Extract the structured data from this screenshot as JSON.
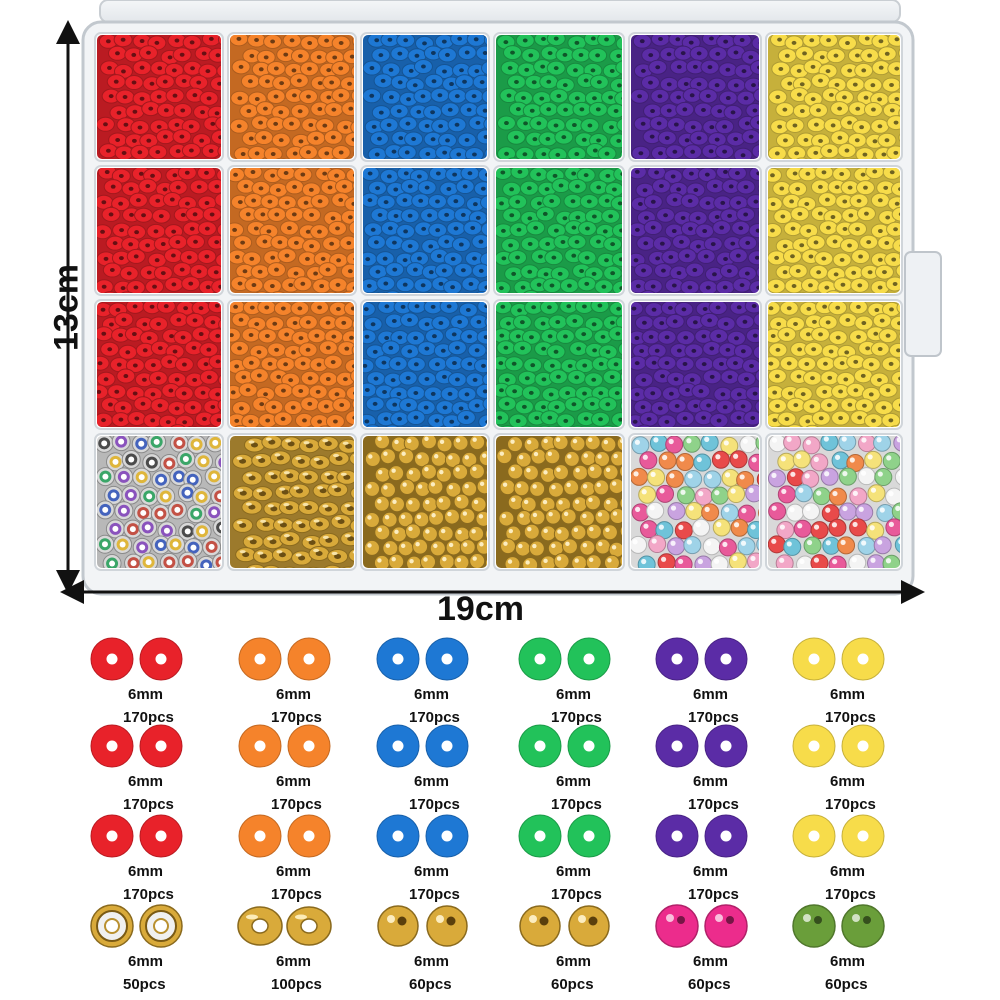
{
  "dimensions": {
    "width_label": "19cm",
    "height_label": "13cm"
  },
  "box": {
    "columns": 6,
    "rows": 4,
    "compartments": [
      [
        "clay-red",
        "clay-orange",
        "clay-blue",
        "clay-green",
        "clay-purple",
        "clay-yellow"
      ],
      [
        "clay-red",
        "clay-orange",
        "clay-blue",
        "clay-green",
        "clay-purple",
        "clay-yellow"
      ],
      [
        "clay-red",
        "clay-orange",
        "clay-blue",
        "clay-green",
        "clay-purple",
        "clay-yellow"
      ],
      [
        "rhinestone-spacer",
        "gold-flat-spacer",
        "gold-round",
        "gold-round",
        "mixed-pearl",
        "mixed-pearl"
      ]
    ]
  },
  "colors": {
    "red": "#e8222a",
    "orange": "#f5832b",
    "blue": "#1e78d4",
    "green": "#22c25a",
    "purple": "#5b2ca6",
    "yellow": "#f7dc4a",
    "gold": "#d9aa3a",
    "pink": "#ec2c8c",
    "olive": "#6a9e3a",
    "silver": "#d8d8d8"
  },
  "legend": [
    [
      {
        "type": "clay",
        "color": "red",
        "size": "6mm",
        "count": "170pcs"
      },
      {
        "type": "clay",
        "color": "orange",
        "size": "6mm",
        "count": "170pcs"
      },
      {
        "type": "clay",
        "color": "blue",
        "size": "6mm",
        "count": "170pcs"
      },
      {
        "type": "clay",
        "color": "green",
        "size": "6mm",
        "count": "170pcs"
      },
      {
        "type": "clay",
        "color": "purple",
        "size": "6mm",
        "count": "170pcs"
      },
      {
        "type": "clay",
        "color": "yellow",
        "size": "6mm",
        "count": "170pcs"
      }
    ],
    [
      {
        "type": "clay",
        "color": "red",
        "size": "6mm",
        "count": "170pcs"
      },
      {
        "type": "clay",
        "color": "orange",
        "size": "6mm",
        "count": "170pcs"
      },
      {
        "type": "clay",
        "color": "blue",
        "size": "6mm",
        "count": "170pcs"
      },
      {
        "type": "clay",
        "color": "green",
        "size": "6mm",
        "count": "170pcs"
      },
      {
        "type": "clay",
        "color": "purple",
        "size": "6mm",
        "count": "170pcs"
      },
      {
        "type": "clay",
        "color": "yellow",
        "size": "6mm",
        "count": "170pcs"
      }
    ],
    [
      {
        "type": "clay",
        "color": "red",
        "size": "6mm",
        "count": "170pcs"
      },
      {
        "type": "clay",
        "color": "orange",
        "size": "6mm",
        "count": "170pcs"
      },
      {
        "type": "clay",
        "color": "blue",
        "size": "6mm",
        "count": "170pcs"
      },
      {
        "type": "clay",
        "color": "green",
        "size": "6mm",
        "count": "170pcs"
      },
      {
        "type": "clay",
        "color": "purple",
        "size": "6mm",
        "count": "170pcs"
      },
      {
        "type": "clay",
        "color": "yellow",
        "size": "6mm",
        "count": "170pcs"
      }
    ],
    [
      {
        "type": "rhinestone-spacer",
        "color": "gold",
        "size": "6mm",
        "count": "50pcs"
      },
      {
        "type": "flat-spacer",
        "color": "gold",
        "size": "6mm",
        "count": "100pcs"
      },
      {
        "type": "round",
        "color": "gold",
        "size": "6mm",
        "count": "60pcs"
      },
      {
        "type": "round",
        "color": "gold",
        "size": "6mm",
        "count": "60pcs"
      },
      {
        "type": "pearl",
        "color": "pink",
        "size": "6mm",
        "count": "60pcs"
      },
      {
        "type": "pearl",
        "color": "olive",
        "size": "6mm",
        "count": "60pcs"
      }
    ]
  ]
}
